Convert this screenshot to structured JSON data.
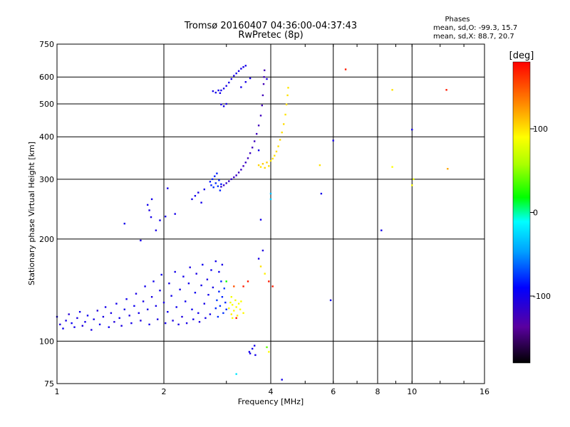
{
  "header": {
    "title_line1": "Tromsø 20160407 04:36:00-04:37:43",
    "title_line2": "RwPretec (8p)",
    "stats_heading": "Phases",
    "stats_o": "mean, sd,O: -99.3, 15.7",
    "stats_x": "mean, sd,X:  88.7, 20.7"
  },
  "colorbar": {
    "label": "[deg]",
    "min": -180,
    "max": 180,
    "ticks": [
      {
        "value": 100,
        "label": "100"
      },
      {
        "value": 0,
        "label": "0"
      },
      {
        "value": -100,
        "label": "-100"
      }
    ]
  },
  "chart_data": {
    "type": "scatter",
    "xlabel": "Frequency [MHz]",
    "ylabel": "Stationary phase Virtual Height [km]",
    "xscale": "log",
    "yscale": "log",
    "xlim": [
      1,
      16
    ],
    "ylim": [
      75,
      750
    ],
    "grid": true,
    "xticks": [
      {
        "value": 1,
        "label": "1"
      },
      {
        "value": 2,
        "label": "2"
      },
      {
        "value": 4,
        "label": "4"
      },
      {
        "value": 6,
        "label": "6"
      },
      {
        "value": 8,
        "label": "8"
      },
      {
        "value": 10,
        "label": "10"
      },
      {
        "value": 16,
        "label": "16"
      }
    ],
    "yticks": [
      {
        "value": 75,
        "label": "75"
      },
      {
        "value": 100,
        "label": "100"
      },
      {
        "value": 200,
        "label": "200"
      },
      {
        "value": 300,
        "label": "300"
      },
      {
        "value": 400,
        "label": "400"
      },
      {
        "value": 500,
        "label": "500"
      },
      {
        "value": 600,
        "label": "600"
      },
      {
        "value": 750,
        "label": "750"
      }
    ],
    "color_by": "phase [deg]",
    "points": [
      [
        1.0,
        118,
        -100
      ],
      [
        1.02,
        112,
        -105
      ],
      [
        1.04,
        109,
        -98
      ],
      [
        1.06,
        115,
        -102
      ],
      [
        1.08,
        120,
        -110
      ],
      [
        1.1,
        113,
        -95
      ],
      [
        1.12,
        110,
        -100
      ],
      [
        1.14,
        117,
        -104
      ],
      [
        1.16,
        122,
        -98
      ],
      [
        1.18,
        111,
        -106
      ],
      [
        1.2,
        114,
        -100
      ],
      [
        1.22,
        119,
        -97
      ],
      [
        1.25,
        108,
        -103
      ],
      [
        1.27,
        116,
        -101
      ],
      [
        1.3,
        123,
        -108
      ],
      [
        1.32,
        112,
        -99
      ],
      [
        1.35,
        118,
        -104
      ],
      [
        1.37,
        126,
        -100
      ],
      [
        1.4,
        110,
        -96
      ],
      [
        1.42,
        121,
        -102
      ],
      [
        1.45,
        114,
        -107
      ],
      [
        1.47,
        129,
        -100
      ],
      [
        1.5,
        117,
        -98
      ],
      [
        1.52,
        111,
        -104
      ],
      [
        1.55,
        124,
        -101
      ],
      [
        1.57,
        133,
        -99
      ],
      [
        1.6,
        119,
        -105
      ],
      [
        1.62,
        113,
        -100
      ],
      [
        1.65,
        127,
        -97
      ],
      [
        1.67,
        138,
        -103
      ],
      [
        1.7,
        121,
        -100
      ],
      [
        1.72,
        115,
        -106
      ],
      [
        1.75,
        131,
        -101
      ],
      [
        1.77,
        145,
        -99
      ],
      [
        1.8,
        124,
        -102
      ],
      [
        1.82,
        112,
        -100
      ],
      [
        1.85,
        135,
        -104
      ],
      [
        1.87,
        150,
        -98
      ],
      [
        1.9,
        127,
        -101
      ],
      [
        1.92,
        116,
        -105
      ],
      [
        1.95,
        141,
        -100
      ],
      [
        1.97,
        157,
        -97
      ],
      [
        2.0,
        130,
        -103
      ],
      [
        2.02,
        113,
        -100
      ],
      [
        2.05,
        122,
        -96
      ],
      [
        2.07,
        148,
        -102
      ],
      [
        2.1,
        136,
        -99
      ],
      [
        2.12,
        115,
        -104
      ],
      [
        2.15,
        160,
        -100
      ],
      [
        2.17,
        126,
        -98
      ],
      [
        2.2,
        112,
        -103
      ],
      [
        2.22,
        142,
        -101
      ],
      [
        2.25,
        118,
        -106
      ],
      [
        2.27,
        155,
        -100
      ],
      [
        2.3,
        131,
        -97
      ],
      [
        2.32,
        113,
        -102
      ],
      [
        2.35,
        148,
        -100
      ],
      [
        2.37,
        165,
        -104
      ],
      [
        2.4,
        124,
        -99
      ],
      [
        2.42,
        116,
        -101
      ],
      [
        2.45,
        139,
        -98
      ],
      [
        2.47,
        158,
        -103
      ],
      [
        2.5,
        121,
        -100
      ],
      [
        2.52,
        114,
        -105
      ],
      [
        2.55,
        146,
        -100
      ],
      [
        2.57,
        168,
        -97
      ],
      [
        2.6,
        129,
        -102
      ],
      [
        2.62,
        117,
        -100
      ],
      [
        2.65,
        152,
        -104
      ],
      [
        2.67,
        137,
        -99
      ],
      [
        2.7,
        120,
        -101
      ],
      [
        2.72,
        162,
        -98
      ],
      [
        2.75,
        144,
        -103
      ],
      [
        2.8,
        125,
        -80
      ],
      [
        2.82,
        132,
        -75
      ],
      [
        2.84,
        118,
        -78
      ],
      [
        2.86,
        140,
        -82
      ],
      [
        2.88,
        127,
        -76
      ],
      [
        2.9,
        150,
        -79
      ],
      [
        2.92,
        135,
        -81
      ],
      [
        2.94,
        121,
        -77
      ],
      [
        2.96,
        143,
        -74
      ],
      [
        2.98,
        130,
        -80
      ],
      [
        3.0,
        124,
        -78
      ],
      [
        2.8,
        172,
        -100
      ],
      [
        2.86,
        160,
        -98
      ],
      [
        2.92,
        168,
        -102
      ],
      [
        3.05,
        125,
        90
      ],
      [
        3.08,
        130,
        85
      ],
      [
        3.1,
        120,
        95
      ],
      [
        3.12,
        128,
        88
      ],
      [
        3.15,
        123,
        92
      ],
      [
        3.18,
        132,
        86
      ],
      [
        3.2,
        126,
        90
      ],
      [
        3.22,
        119,
        94
      ],
      [
        3.25,
        129,
        87
      ],
      [
        3.28,
        124,
        91
      ],
      [
        3.3,
        131,
        89
      ],
      [
        3.12,
        117,
        88
      ],
      [
        3.35,
        121,
        92
      ],
      [
        3.1,
        135,
        85
      ],
      [
        3.2,
        117,
        170
      ],
      [
        3.35,
        145,
        170
      ],
      [
        3.15,
        145,
        150
      ],
      [
        1.55,
        222,
        -100
      ],
      [
        1.72,
        198,
        -102
      ],
      [
        1.8,
        252,
        -98
      ],
      [
        1.82,
        243,
        -104
      ],
      [
        1.85,
        262,
        -100
      ],
      [
        1.84,
        232,
        -101
      ],
      [
        1.9,
        212,
        -103
      ],
      [
        1.95,
        227,
        -99
      ],
      [
        2.02,
        233,
        -102
      ],
      [
        2.05,
        282,
        -100
      ],
      [
        2.15,
        237,
        -101
      ],
      [
        2.4,
        262,
        -100
      ],
      [
        2.45,
        268,
        -99
      ],
      [
        2.5,
        274,
        -102
      ],
      [
        2.55,
        256,
        -100
      ],
      [
        2.6,
        280,
        -101
      ],
      [
        2.7,
        295,
        -85
      ],
      [
        2.72,
        288,
        -80
      ],
      [
        2.74,
        300,
        -82
      ],
      [
        2.76,
        284,
        -78
      ],
      [
        2.78,
        306,
        -83
      ],
      [
        2.8,
        292,
        -79
      ],
      [
        2.82,
        312,
        -81
      ],
      [
        2.84,
        286,
        -77
      ],
      [
        2.86,
        298,
        -82
      ],
      [
        2.88,
        278,
        -80
      ],
      [
        2.9,
        290,
        -84
      ],
      [
        2.9,
        285,
        -115
      ],
      [
        2.95,
        288,
        -117
      ],
      [
        3.0,
        292,
        -116
      ],
      [
        3.05,
        296,
        -118
      ],
      [
        3.1,
        300,
        -117
      ],
      [
        3.15,
        304,
        -119
      ],
      [
        3.2,
        308,
        -118
      ],
      [
        3.25,
        314,
        -120
      ],
      [
        3.3,
        320,
        -118
      ],
      [
        3.35,
        328,
        -120
      ],
      [
        3.4,
        336,
        -119
      ],
      [
        3.45,
        346,
        -121
      ],
      [
        3.5,
        358,
        -120
      ],
      [
        3.55,
        372,
        -122
      ],
      [
        3.6,
        388,
        -121
      ],
      [
        3.65,
        408,
        -122
      ],
      [
        3.7,
        432,
        -123
      ],
      [
        3.75,
        462,
        -122
      ],
      [
        3.78,
        495,
        -124
      ],
      [
        3.8,
        530,
        -123
      ],
      [
        3.82,
        572,
        -125
      ],
      [
        3.83,
        600,
        -124
      ],
      [
        3.84,
        628,
        -125
      ],
      [
        2.75,
        545,
        -100
      ],
      [
        2.8,
        540,
        -102
      ],
      [
        2.85,
        548,
        -99
      ],
      [
        2.88,
        538,
        -101
      ],
      [
        2.9,
        548,
        -100
      ],
      [
        2.95,
        555,
        -101
      ],
      [
        3.0,
        565,
        -103
      ],
      [
        3.05,
        578,
        -101
      ],
      [
        3.1,
        592,
        -100
      ],
      [
        3.15,
        605,
        -102
      ],
      [
        3.2,
        615,
        -101
      ],
      [
        3.25,
        625,
        -103
      ],
      [
        3.3,
        635,
        -100
      ],
      [
        3.35,
        642,
        -102
      ],
      [
        3.4,
        648,
        -101
      ],
      [
        2.9,
        498,
        -103
      ],
      [
        2.95,
        492,
        -101
      ],
      [
        3.0,
        500,
        -102
      ],
      [
        3.3,
        560,
        -100
      ],
      [
        3.4,
        580,
        -102
      ],
      [
        3.5,
        595,
        -101
      ],
      [
        3.7,
        330,
        105
      ],
      [
        3.75,
        326,
        100
      ],
      [
        3.8,
        333,
        108
      ],
      [
        3.85,
        324,
        103
      ],
      [
        3.9,
        336,
        106
      ],
      [
        3.95,
        328,
        101
      ],
      [
        4.0,
        340,
        98
      ],
      [
        4.05,
        345,
        102
      ],
      [
        4.1,
        352,
        100
      ],
      [
        4.15,
        362,
        103
      ],
      [
        4.2,
        375,
        101
      ],
      [
        4.25,
        392,
        104
      ],
      [
        4.3,
        412,
        100
      ],
      [
        4.35,
        436,
        102
      ],
      [
        4.4,
        465,
        99
      ],
      [
        4.43,
        498,
        101
      ],
      [
        4.46,
        530,
        100
      ],
      [
        4.48,
        558,
        98
      ],
      [
        3.9,
        592,
        -105
      ],
      [
        3.7,
        365,
        -100
      ],
      [
        3.75,
        228,
        -100
      ],
      [
        3.8,
        185,
        -105
      ],
      [
        3.7,
        175,
        -102
      ],
      [
        3.75,
        166,
        100
      ],
      [
        3.85,
        158,
        95
      ],
      [
        3.95,
        150,
        170
      ],
      [
        3.45,
        150,
        170
      ],
      [
        4.05,
        145,
        170
      ],
      [
        4.0,
        262,
        -30
      ],
      [
        4.0,
        272,
        -35
      ],
      [
        3.48,
        93,
        -100
      ],
      [
        3.5,
        92,
        -102
      ],
      [
        3.55,
        95,
        -98
      ],
      [
        3.6,
        97,
        -101
      ],
      [
        3.62,
        91,
        -100
      ],
      [
        3.9,
        96,
        40
      ],
      [
        3.95,
        93,
        90
      ],
      [
        3.2,
        80,
        -20
      ],
      [
        4.3,
        77,
        -100
      ],
      [
        3.0,
        150,
        20
      ],
      [
        5.5,
        330,
        100
      ],
      [
        6.0,
        390,
        -100
      ],
      [
        5.9,
        132,
        -100
      ],
      [
        5.55,
        272,
        -100
      ],
      [
        6.5,
        632,
        170
      ],
      [
        8.2,
        212,
        -100
      ],
      [
        8.8,
        550,
        100
      ],
      [
        8.8,
        326,
        90
      ],
      [
        10.0,
        420,
        -100
      ],
      [
        10.0,
        288,
        90
      ],
      [
        10.1,
        300,
        80
      ],
      [
        12.5,
        550,
        170
      ],
      [
        12.6,
        322,
        120
      ]
    ]
  }
}
